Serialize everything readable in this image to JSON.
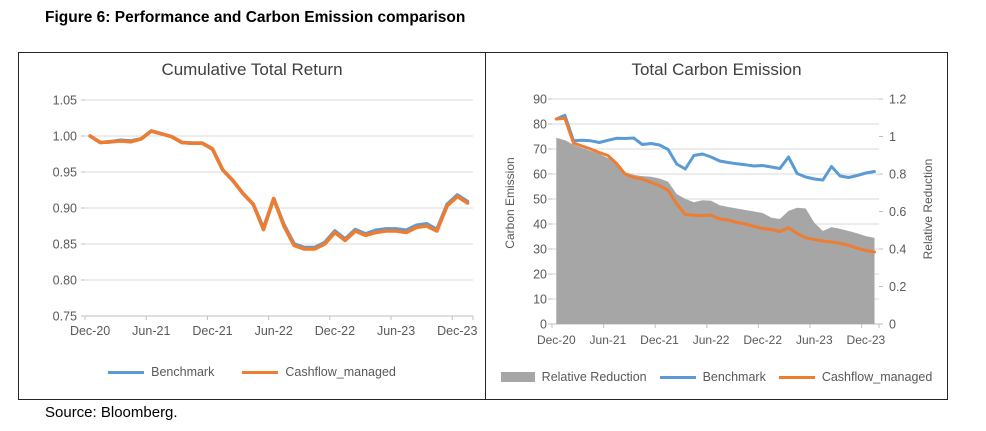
{
  "page": {
    "title": "Figure 6: Performance and Carbon Emission comparison",
    "source": "Source: Bloomberg."
  },
  "colors": {
    "benchmark": "#5B9BD5",
    "cashflow_managed": "#ED7D31",
    "relative_reduction": "#A6A6A6",
    "gridline": "#D9D9D9",
    "axis_line": "#BFBFBF",
    "axis_text": "#595959",
    "chart_title_text": "#3f3f3f"
  },
  "chart_data": [
    {
      "type": "line",
      "title": "Cumulative Total Return",
      "x_tick_labels": [
        "Dec-20",
        "Jun-21",
        "Dec-21",
        "Jun-22",
        "Dec-22",
        "Jun-23",
        "Dec-23"
      ],
      "x_tick_interval_months": 6,
      "y_tick_labels": [
        "1.05",
        "1.00",
        "0.95",
        "0.90",
        "0.85",
        "0.80",
        "0.75"
      ],
      "ylim": [
        0.75,
        1.05
      ],
      "grid": true,
      "legend_position": "bottom",
      "legend": [
        "Benchmark",
        "Cashflow_managed"
      ],
      "series": [
        {
          "name": "Benchmark",
          "color_key": "benchmark",
          "values": [
            1.0,
            0.991,
            0.992,
            0.994,
            0.993,
            0.996,
            1.007,
            1.003,
            0.999,
            0.991,
            0.99,
            0.99,
            0.982,
            0.953,
            0.938,
            0.92,
            0.905,
            0.872,
            0.913,
            0.877,
            0.85,
            0.845,
            0.845,
            0.852,
            0.868,
            0.857,
            0.87,
            0.864,
            0.869,
            0.871,
            0.871,
            0.869,
            0.876,
            0.878,
            0.87,
            0.905,
            0.918,
            0.909
          ]
        },
        {
          "name": "Cashflow_managed",
          "color_key": "cashflow_managed",
          "values": [
            1.0,
            0.991,
            0.992,
            0.993,
            0.992,
            0.996,
            1.007,
            1.003,
            0.999,
            0.991,
            0.99,
            0.99,
            0.982,
            0.953,
            0.938,
            0.92,
            0.905,
            0.87,
            0.913,
            0.875,
            0.848,
            0.843,
            0.843,
            0.85,
            0.866,
            0.855,
            0.868,
            0.862,
            0.866,
            0.868,
            0.868,
            0.866,
            0.873,
            0.875,
            0.868,
            0.903,
            0.916,
            0.907
          ]
        }
      ]
    },
    {
      "type": "line+area",
      "title": "Total Carbon Emission",
      "x_tick_labels": [
        "Dec-20",
        "Jun-21",
        "Dec-21",
        "Jun-22",
        "Dec-22",
        "Jun-23",
        "Dec-23"
      ],
      "x_tick_interval_months": 6,
      "y_axis_left": {
        "label": "Carbon Emission",
        "tick_labels": [
          "90",
          "80",
          "70",
          "60",
          "50",
          "40",
          "30",
          "20",
          "10",
          "0"
        ],
        "lim": [
          0,
          90
        ]
      },
      "y_axis_right": {
        "label": "Relative Reduction",
        "tick_labels": [
          "1.2",
          "1",
          "0.8",
          "0.6",
          "0.4",
          "0.2",
          "0"
        ],
        "lim": [
          0,
          1.2
        ]
      },
      "grid": true,
      "legend_position": "bottom",
      "legend": [
        "Relative Reduction",
        "Benchmark",
        "Cashflow_managed"
      ],
      "area_series": {
        "name": "Relative Reduction",
        "axis": "right",
        "color_key": "relative_reduction",
        "values": [
          0.993,
          0.98,
          0.957,
          0.939,
          0.923,
          0.907,
          0.885,
          0.867,
          0.809,
          0.795,
          0.789,
          0.785,
          0.776,
          0.759,
          0.693,
          0.667,
          0.649,
          0.66,
          0.657,
          0.633,
          0.624,
          0.616,
          0.608,
          0.6,
          0.592,
          0.567,
          0.56,
          0.603,
          0.62,
          0.616,
          0.54,
          0.496,
          0.517,
          0.507,
          0.496,
          0.483,
          0.469,
          0.459
        ]
      },
      "series": [
        {
          "name": "Benchmark",
          "axis": "left",
          "color_key": "benchmark",
          "values": [
            82.0,
            83.5,
            73.3,
            73.5,
            73.3,
            72.6,
            73.5,
            74.3,
            74.2,
            74.4,
            71.8,
            72.2,
            71.6,
            69.8,
            64.0,
            62.0,
            67.4,
            68.0,
            66.8,
            65.2,
            64.6,
            64.1,
            63.7,
            63.2,
            63.4,
            62.8,
            62.2,
            66.8,
            60.2,
            58.8,
            58.0,
            57.6,
            63.0,
            59.2,
            58.6,
            59.4,
            60.4,
            61.0
          ]
        },
        {
          "name": "Cashflow_managed",
          "axis": "left",
          "color_key": "cashflow_managed",
          "values": [
            82.0,
            82.3,
            72.4,
            71.2,
            70.0,
            68.6,
            67.4,
            64.2,
            60.0,
            58.6,
            58.0,
            56.6,
            55.4,
            53.4,
            48.0,
            43.8,
            43.5,
            43.3,
            43.6,
            42.0,
            41.6,
            40.6,
            40.0,
            39.0,
            38.2,
            37.8,
            37.0,
            38.5,
            36.2,
            34.5,
            33.8,
            33.2,
            32.8,
            32.3,
            31.5,
            30.3,
            29.4,
            28.8
          ]
        }
      ]
    }
  ]
}
